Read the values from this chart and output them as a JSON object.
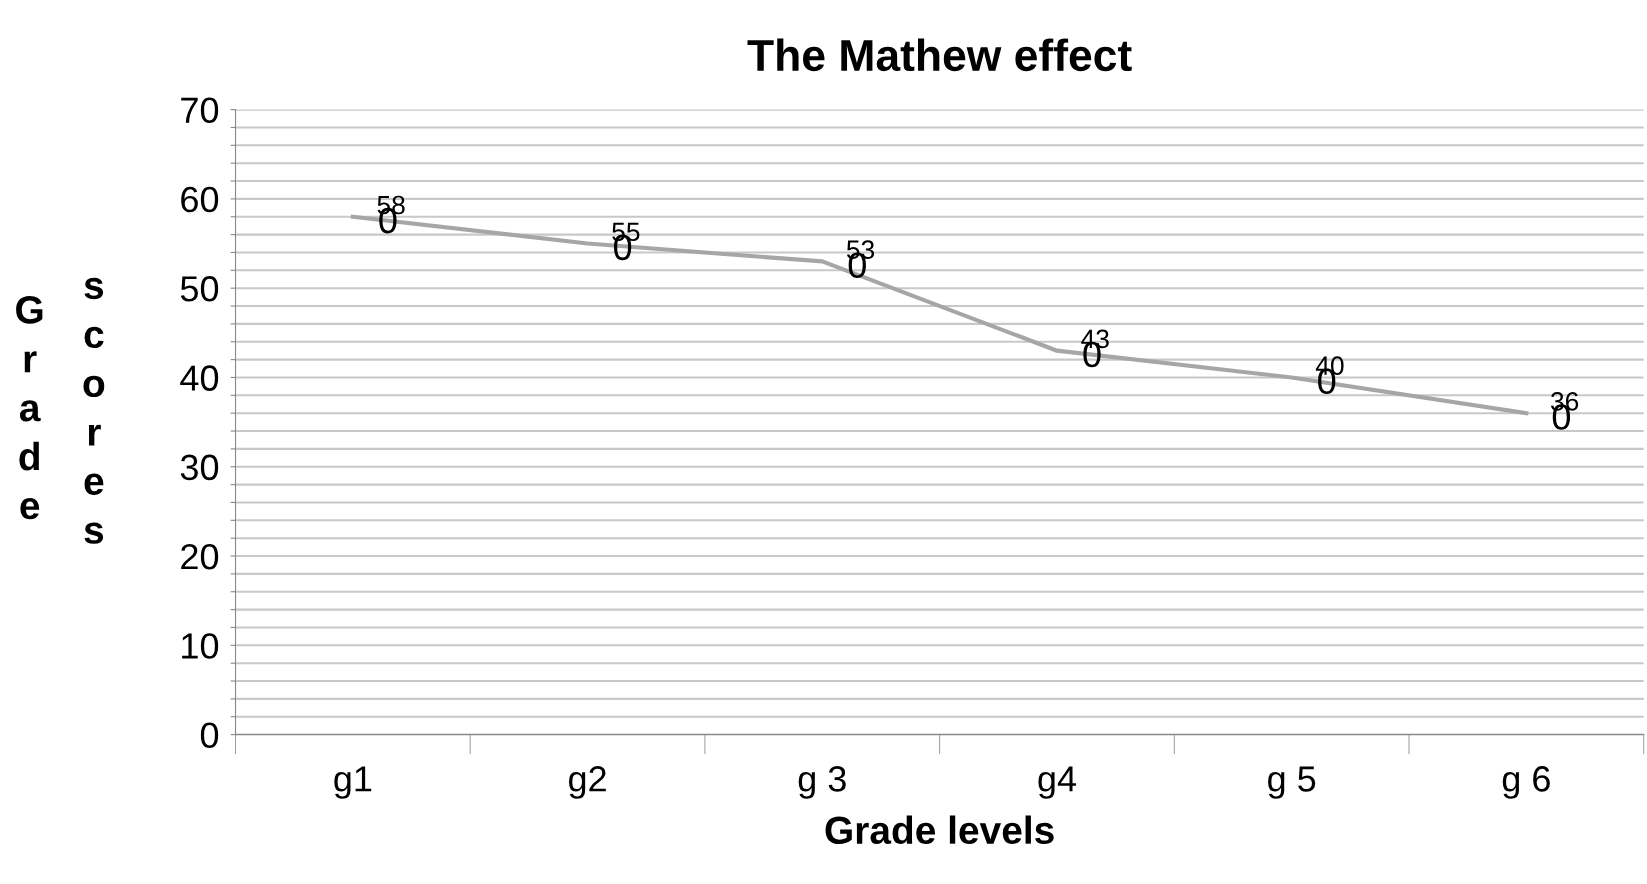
{
  "chart_data": {
    "type": "line",
    "title": "The Mathew effect",
    "xlabel": "Grade levels",
    "ylabel": "Grade scores",
    "categories": [
      "g1",
      "g2",
      "g 3",
      "g4",
      "g 5",
      "g 6"
    ],
    "series": [
      {
        "color": "#a6a6a6",
        "values": [
          58,
          55,
          53,
          43,
          40,
          36
        ],
        "value_labels": [
          "58",
          "55",
          "53",
          "43",
          "40",
          "36"
        ]
      }
    ],
    "annotations": [
      {
        "text": "0",
        "x": "g1",
        "y": 58
      },
      {
        "text": "0",
        "x": "g2",
        "y": 55
      },
      {
        "text": "0",
        "x": "g 3",
        "y": 53
      },
      {
        "text": "0",
        "x": "g4",
        "y": 43
      },
      {
        "text": "0",
        "x": "g 5",
        "y": 40
      },
      {
        "text": "0",
        "x": "g 6",
        "y": 36
      }
    ],
    "ylim": [
      0,
      70
    ],
    "yticks": [
      0,
      {
        "value": 2,
        "label": null
      },
      {
        "value": 4,
        "label": null
      },
      {
        "value": 6,
        "label": null
      },
      {
        "value": 8,
        "label": null
      },
      10,
      {
        "value": 12,
        "label": null
      },
      {
        "value": 14,
        "label": null
      },
      {
        "value": 16,
        "label": null
      },
      {
        "value": 18,
        "label": null
      },
      20,
      {
        "value": 22,
        "label": null
      },
      {
        "value": 24,
        "label": null
      },
      {
        "value": 26,
        "label": null
      },
      {
        "value": 28,
        "label": null
      },
      30,
      {
        "value": 32,
        "label": null
      },
      {
        "value": 34,
        "label": null
      },
      {
        "value": 36,
        "label": null
      },
      {
        "value": 38,
        "label": null
      },
      40,
      {
        "value": 42,
        "label": null
      },
      {
        "value": 44,
        "label": null
      },
      {
        "value": 46,
        "label": null
      },
      {
        "value": 48,
        "label": null
      },
      50,
      {
        "value": 52,
        "label": null
      },
      {
        "value": 54,
        "label": null
      },
      {
        "value": 56,
        "label": null
      },
      {
        "value": 58,
        "label": null
      },
      60,
      {
        "value": 62,
        "label": null
      },
      {
        "value": 64,
        "label": null
      },
      {
        "value": 66,
        "label": null
      },
      {
        "value": 68,
        "label": null
      },
      70
    ],
    "grid": "y",
    "marker": "none",
    "line_style": "solid"
  }
}
